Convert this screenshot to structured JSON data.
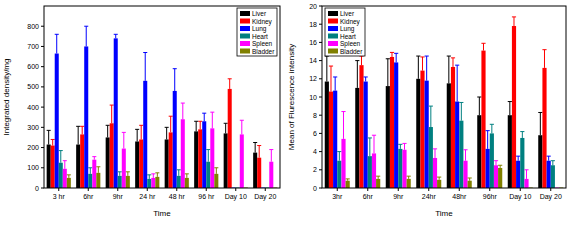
{
  "chart_data": [
    {
      "type": "bar",
      "x_label": "Time",
      "y_label": "Integrated density/mg",
      "categories": [
        "3 hr",
        "6hr",
        "9hr",
        "24 hr",
        "48 hr",
        "96 hr",
        "Day 10",
        "Day 20"
      ],
      "ylim": [
        0,
        900
      ],
      "yticks": [
        0,
        100,
        200,
        300,
        400,
        500,
        600,
        700,
        800
      ],
      "legend": "upper right",
      "series": [
        {
          "name": "Liver",
          "color": "#000000",
          "values": [
            215,
            215,
            250,
            230,
            240,
            280,
            270,
            175
          ],
          "errors": [
            70,
            90,
            60,
            60,
            60,
            50,
            50,
            50
          ]
        },
        {
          "name": "Kidney",
          "color": "#ff0000",
          "values": [
            210,
            265,
            320,
            240,
            275,
            290,
            490,
            150
          ],
          "errors": [
            30,
            40,
            90,
            70,
            80,
            40,
            50,
            60
          ]
        },
        {
          "name": "Lung",
          "color": "#0000ff",
          "values": [
            665,
            700,
            740,
            530,
            480,
            330,
            0,
            0
          ],
          "errors": [
            95,
            100,
            20,
            140,
            110,
            40,
            0,
            0
          ]
        },
        {
          "name": "Heart",
          "color": "#008080",
          "values": [
            125,
            70,
            60,
            45,
            60,
            130,
            0,
            0
          ],
          "errors": [
            60,
            30,
            20,
            20,
            30,
            60,
            0,
            0
          ]
        },
        {
          "name": "Spleen",
          "color": "#ff00ff",
          "values": [
            95,
            140,
            195,
            50,
            340,
            295,
            265,
            130
          ],
          "errors": [
            40,
            15,
            80,
            20,
            80,
            80,
            70,
            60
          ]
        },
        {
          "name": "Bladder",
          "color": "#808000",
          "values": [
            50,
            75,
            60,
            55,
            50,
            70,
            0,
            0
          ],
          "errors": [
            15,
            30,
            20,
            20,
            20,
            30,
            0,
            0
          ]
        }
      ]
    },
    {
      "type": "bar",
      "x_label": "Time",
      "y_label": "Mean of Flurescence intensity",
      "categories": [
        "3hr",
        "6hr",
        "9hr",
        "24hr",
        "48hr",
        "96hr",
        "Day 10",
        "Day 20"
      ],
      "ylim": [
        0,
        20
      ],
      "yticks": [
        0,
        2,
        4,
        6,
        8,
        10,
        12,
        14,
        16,
        18,
        20
      ],
      "legend": "upper left",
      "series": [
        {
          "name": "Liver",
          "color": "#000000",
          "values": [
            11.7,
            11.0,
            11.2,
            12.0,
            11.5,
            8.0,
            8.0,
            5.8
          ],
          "errors": [
            2.8,
            3.0,
            3.0,
            2.5,
            3.0,
            2.0,
            1.5,
            2.5
          ]
        },
        {
          "name": "Kidney",
          "color": "#ff0000",
          "values": [
            10.6,
            13.5,
            14.4,
            12.9,
            13.3,
            15.1,
            17.8,
            13.2
          ],
          "errors": [
            2.8,
            1.0,
            0.5,
            1.5,
            1.0,
            0.8,
            1.0,
            2.0
          ]
        },
        {
          "name": "Lung",
          "color": "#0000ff",
          "values": [
            10.7,
            11.7,
            13.8,
            11.8,
            9.5,
            4.3,
            3.0,
            3.0
          ],
          "errors": [
            1.5,
            0.5,
            1.0,
            2.7,
            4.0,
            2.0,
            0.5,
            0.5
          ]
        },
        {
          "name": "Heart",
          "color": "#008080",
          "values": [
            3.0,
            3.5,
            4.3,
            6.7,
            7.4,
            6.0,
            5.5,
            2.5
          ],
          "errors": [
            1.0,
            2.0,
            0.5,
            2.3,
            2.0,
            1.0,
            0.7,
            0.5
          ]
        },
        {
          "name": "Spleen",
          "color": "#ff00ff",
          "values": [
            5.4,
            3.8,
            4.2,
            3.3,
            3.0,
            2.5,
            1.0,
            0
          ],
          "errors": [
            3.0,
            2.0,
            0.7,
            1.0,
            1.2,
            0.5,
            1.0,
            0
          ]
        },
        {
          "name": "Bladder",
          "color": "#808000",
          "values": [
            0.8,
            1.0,
            1.0,
            0.9,
            0.8,
            2.2,
            0,
            0
          ],
          "errors": [
            0.2,
            0.3,
            0.3,
            0.3,
            0.3,
            0.3,
            0,
            0
          ]
        }
      ]
    }
  ]
}
